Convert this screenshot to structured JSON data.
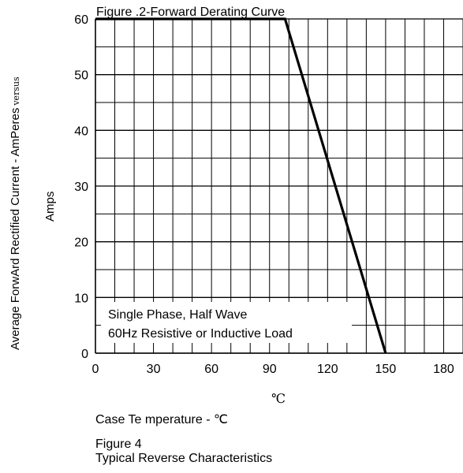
{
  "chart_data": {
    "type": "line",
    "title": "Figure .2-Forward Derating Curve",
    "ylabel_line1": "Average ForwArd Rectified Current  -  AmPeres",
    "ylabel_versus": "versus",
    "ylabel_line2": "Amps",
    "xlabel": "Case Te mperature  -  ℃",
    "x_unit_mark": "℃",
    "x_ticks": [
      "0",
      "30",
      "60",
      "90",
      "120",
      "150",
      "180"
    ],
    "x_tick_values": [
      0,
      30,
      60,
      90,
      120,
      150,
      180
    ],
    "y_ticks": [
      "0",
      "10",
      "20",
      "30",
      "40",
      "50",
      "60"
    ],
    "y_tick_values": [
      0,
      10,
      20,
      30,
      40,
      50,
      60
    ],
    "xlim": [
      0,
      190
    ],
    "ylim": [
      0,
      60
    ],
    "grid": true,
    "annotation_lines": [
      "Single Phase, Half Wave",
      "60Hz Resistive or Inductive Load"
    ],
    "series": [
      {
        "x": [
          0,
          98,
          150
        ],
        "y": [
          60,
          60,
          0
        ]
      }
    ]
  },
  "footer": {
    "figure_label": "Figure 4",
    "figure_caption": "Typical Reverse Characteristics"
  }
}
